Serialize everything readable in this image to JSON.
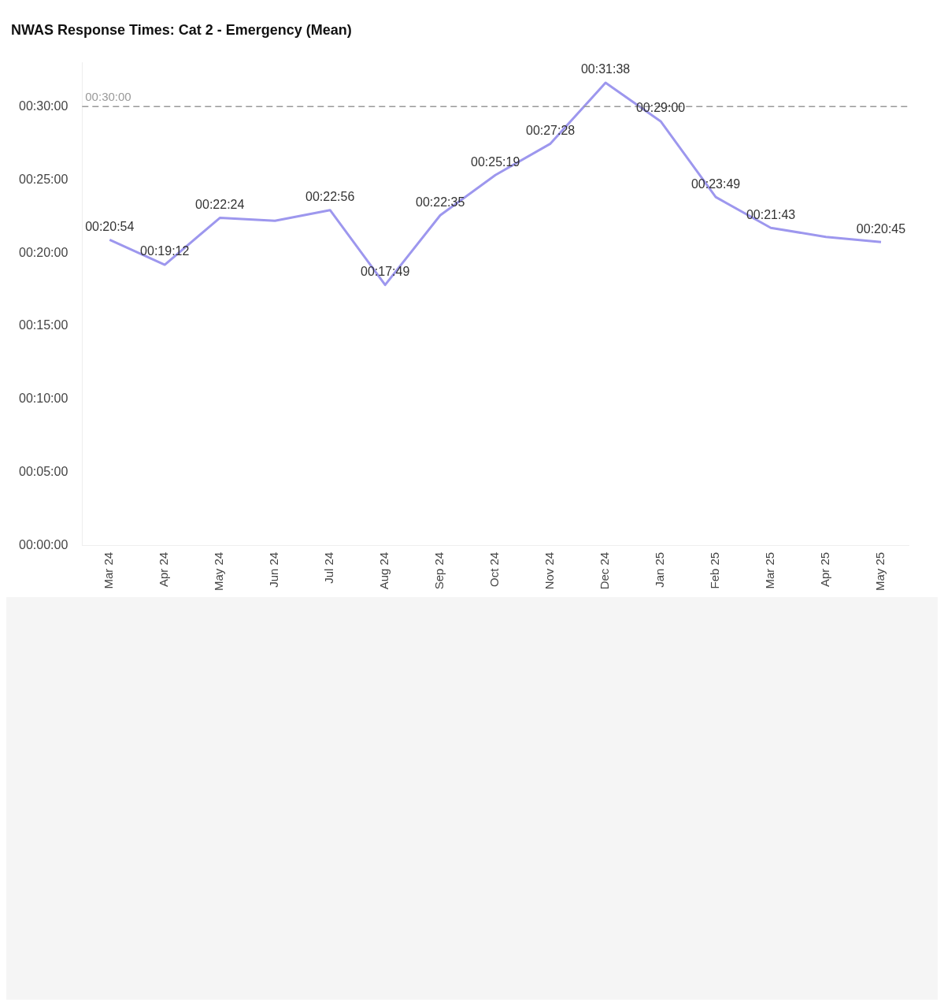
{
  "chart_data": {
    "type": "line",
    "title": "NWAS Response Times: Cat 2 - Emergency (Mean)",
    "categories": [
      "Mar 24",
      "Apr 24",
      "May 24",
      "Jun 24",
      "Jul 24",
      "Aug 24",
      "Sep 24",
      "Oct 24",
      "Nov 24",
      "Dec 24",
      "Jan 25",
      "Feb 25",
      "Mar 25",
      "Apr 25",
      "May 25"
    ],
    "series": [
      {
        "color": "#9d97ee",
        "values": [
          20.9,
          19.2,
          22.4,
          22.2,
          22.93,
          17.82,
          22.58,
          25.32,
          27.47,
          31.63,
          29,
          23.82,
          21.72,
          21.1,
          20.75
        ],
        "value_labels": [
          "00:20:54",
          "00:19:12",
          "00:22:24",
          null,
          "00:22:56",
          "00:17:49",
          "00:22:35",
          "00:25:19",
          "00:27:28",
          "00:31:38",
          "00:29:00",
          "00:23:49",
          "00:21:43",
          null,
          "00:20:45"
        ]
      }
    ],
    "ylim": [
      0,
      33
    ],
    "yticks": [
      {
        "value": 0,
        "label": "00:00:00"
      },
      {
        "value": 5,
        "label": "00:05:00"
      },
      {
        "value": 10,
        "label": "00:10:00"
      },
      {
        "value": 15,
        "label": "00:15:00"
      },
      {
        "value": 20,
        "label": "00:20:00"
      },
      {
        "value": 25,
        "label": "00:25:00"
      },
      {
        "value": 30,
        "label": "00:30:00"
      }
    ],
    "ref_lines": [
      {
        "axis": "y",
        "value": 30,
        "label": "00:30:00",
        "color": "#999999",
        "line_style": "dashed"
      }
    ],
    "grid": false,
    "legend": false,
    "marker": "none",
    "line_style": "solid"
  }
}
